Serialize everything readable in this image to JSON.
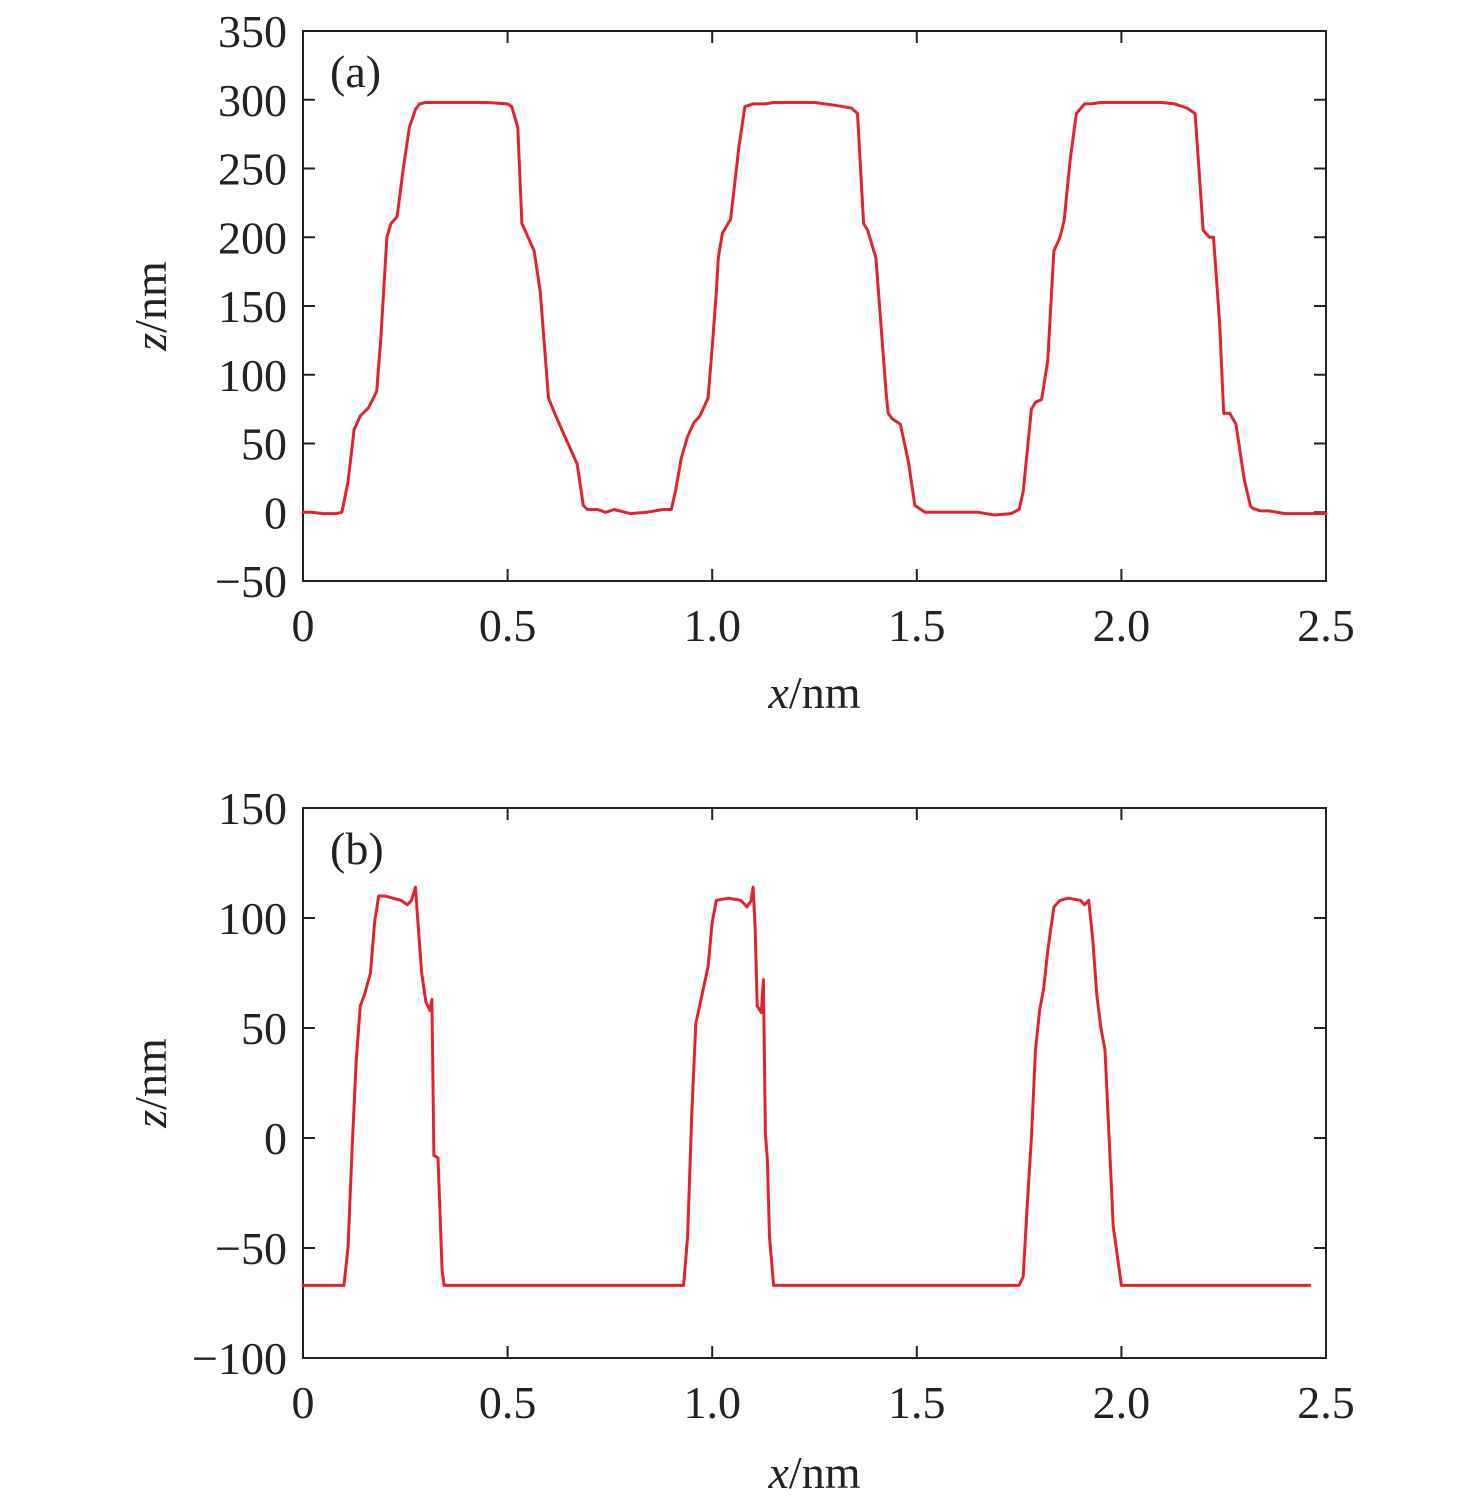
{
  "chart_data": [
    {
      "type": "line",
      "panel_label": "(a)",
      "xlabel": {
        "var": "x",
        "unit": "/nm"
      },
      "ylabel": {
        "var": "z",
        "unit": "/nm"
      },
      "xlim": [
        0,
        2.5
      ],
      "ylim": [
        -50,
        350
      ],
      "xticks": [
        0,
        0.5,
        1.0,
        1.5,
        2.0,
        2.5
      ],
      "xtick_labels": [
        "0",
        "0.5",
        "1.0",
        "1.5",
        "2.0",
        "2.5"
      ],
      "yticks": [
        -50,
        0,
        50,
        100,
        150,
        200,
        250,
        300,
        350
      ],
      "ytick_labels": [
        "−50",
        "0",
        "50",
        "100",
        "150",
        "200",
        "250",
        "300",
        "350"
      ],
      "grid": false,
      "series": [
        {
          "color": "#e0242f",
          "x": [
            0,
            0.02,
            0.05,
            0.08,
            0.095,
            0.11,
            0.125,
            0.14,
            0.16,
            0.18,
            0.19,
            0.205,
            0.215,
            0.23,
            0.245,
            0.26,
            0.275,
            0.285,
            0.3,
            0.35,
            0.4,
            0.45,
            0.5,
            0.51,
            0.525,
            0.535,
            0.55,
            0.565,
            0.58,
            0.6,
            0.615,
            0.64,
            0.67,
            0.685,
            0.695,
            0.72,
            0.74,
            0.76,
            0.8,
            0.84,
            0.88,
            0.9,
            0.91,
            0.925,
            0.94,
            0.955,
            0.97,
            0.99,
            1.0,
            1.01,
            1.015,
            1.025,
            1.045,
            1.065,
            1.08,
            1.1,
            1.115,
            1.13,
            1.15,
            1.2,
            1.25,
            1.3,
            1.34,
            1.355,
            1.37,
            1.38,
            1.4,
            1.425,
            1.43,
            1.44,
            1.46,
            1.48,
            1.495,
            1.52,
            1.56,
            1.6,
            1.65,
            1.69,
            1.73,
            1.75,
            1.76,
            1.77,
            1.78,
            1.79,
            1.805,
            1.82,
            1.835,
            1.85,
            1.86,
            1.875,
            1.89,
            1.91,
            1.925,
            1.95,
            2.0,
            2.05,
            2.1,
            2.13,
            2.16,
            2.18,
            2.2,
            2.215,
            2.225,
            2.24,
            2.25,
            2.265,
            2.28,
            2.3,
            2.315,
            2.32,
            2.34,
            2.36,
            2.4,
            2.45,
            2.5
          ],
          "y": [
            0,
            0,
            -1,
            -1,
            0,
            22,
            60,
            70,
            76,
            88,
            125,
            200,
            210,
            215,
            250,
            280,
            293,
            297,
            298,
            298,
            298,
            298,
            297,
            295,
            280,
            210,
            200,
            190,
            160,
            83,
            72,
            55,
            35,
            5,
            2,
            2,
            0,
            2,
            -1,
            0,
            2,
            2,
            15,
            40,
            55,
            65,
            70,
            83,
            120,
            160,
            185,
            203,
            213,
            265,
            295,
            297,
            297,
            297,
            298,
            298,
            298,
            296,
            294,
            290,
            210,
            205,
            185,
            87,
            72,
            68,
            64,
            36,
            5,
            0,
            0,
            0,
            0,
            -2,
            -1,
            2,
            15,
            45,
            75,
            80,
            82,
            110,
            190,
            200,
            212,
            257,
            290,
            297,
            297,
            298,
            298,
            298,
            298,
            297,
            294,
            290,
            205,
            200,
            200,
            138,
            72,
            72,
            64,
            24,
            5,
            3,
            1,
            1,
            -1,
            -1,
            -1
          ]
        }
      ]
    },
    {
      "type": "line",
      "panel_label": "(b)",
      "xlabel": {
        "var": "x",
        "unit": "/nm"
      },
      "ylabel": {
        "var": "z",
        "unit": "/nm"
      },
      "xlim": [
        0,
        2.5
      ],
      "ylim": [
        -100,
        150
      ],
      "xticks": [
        0,
        0.5,
        1.0,
        1.5,
        2.0,
        2.5
      ],
      "xtick_labels": [
        "0",
        "0.5",
        "1.0",
        "1.5",
        "2.0",
        "2.5"
      ],
      "yticks": [
        -100,
        -50,
        0,
        50,
        100,
        150
      ],
      "ytick_labels": [
        "−100",
        "−50",
        "0",
        "50",
        "100",
        "150"
      ],
      "grid": false,
      "series": [
        {
          "color": "#e0242f",
          "x": [
            0,
            0.05,
            0.1,
            0.11,
            0.12,
            0.13,
            0.14,
            0.15,
            0.165,
            0.175,
            0.185,
            0.2,
            0.22,
            0.24,
            0.255,
            0.265,
            0.275,
            0.28,
            0.29,
            0.3,
            0.31,
            0.315,
            0.32,
            0.33,
            0.34,
            0.345,
            0.36,
            0.4,
            0.5,
            0.6,
            0.7,
            0.8,
            0.9,
            0.93,
            0.94,
            0.95,
            0.96,
            0.975,
            0.99,
            1.0,
            1.01,
            1.04,
            1.07,
            1.085,
            1.095,
            1.1,
            1.105,
            1.11,
            1.12,
            1.125,
            1.13,
            1.135,
            1.14,
            1.15,
            1.16,
            1.175,
            1.2,
            1.3,
            1.4,
            1.5,
            1.6,
            1.7,
            1.75,
            1.76,
            1.77,
            1.78,
            1.79,
            1.8,
            1.81,
            1.82,
            1.835,
            1.85,
            1.87,
            1.9,
            1.91,
            1.92,
            1.93,
            1.94,
            1.95,
            1.96,
            1.975,
            1.98,
            2.0,
            2.1,
            2.2,
            2.3,
            2.4,
            2.46
          ],
          "y": [
            -67,
            -67,
            -67,
            -50,
            -5,
            35,
            60,
            65,
            75,
            98,
            110,
            110,
            109,
            108,
            106,
            108,
            114,
            100,
            75,
            62,
            58,
            63,
            -8,
            -9,
            -60,
            -67,
            -67,
            -67,
            -67,
            -67,
            -67,
            -67,
            -67,
            -67,
            -45,
            10,
            52,
            65,
            78,
            98,
            108,
            109,
            108,
            105,
            108,
            114,
            95,
            60,
            57,
            72,
            2,
            -10,
            -45,
            -67,
            -67,
            -67,
            -67,
            -67,
            -67,
            -67,
            -67,
            -67,
            -67,
            -63,
            -30,
            0,
            40,
            58,
            68,
            85,
            105,
            108,
            109,
            108,
            106,
            108,
            90,
            65,
            50,
            40,
            -20,
            -40,
            -67,
            -67,
            -67,
            -67,
            -67,
            -67
          ]
        }
      ]
    }
  ]
}
